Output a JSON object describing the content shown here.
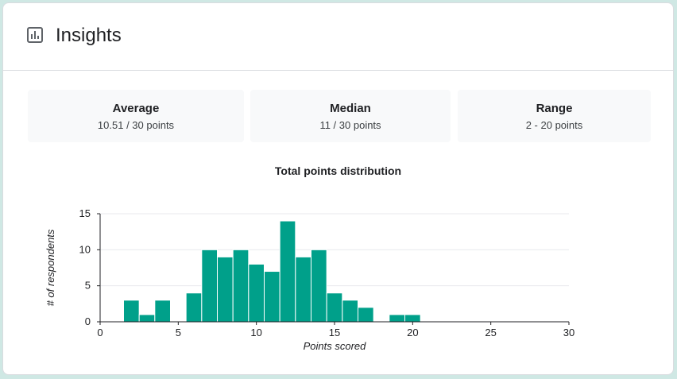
{
  "header": {
    "title": "Insights",
    "icon": "bar-chart-icon"
  },
  "stats": [
    {
      "label": "Average",
      "value": "10.51 / 30 points"
    },
    {
      "label": "Median",
      "value": "11 / 30 points"
    },
    {
      "label": "Range",
      "value": "2 - 20 points"
    }
  ],
  "colors": {
    "bar": "#00a08a",
    "grid": "#e8eaed",
    "axis": "#202124"
  },
  "chart_data": {
    "type": "bar",
    "title": "Total points distribution",
    "xlabel": "Points scored",
    "ylabel": "# of respondents",
    "xlim": [
      0,
      30
    ],
    "ylim": [
      0,
      15
    ],
    "xticks": [
      0,
      5,
      10,
      15,
      20,
      25,
      30
    ],
    "yticks": [
      0,
      5,
      10,
      15
    ],
    "grid": true,
    "x": [
      2,
      3,
      4,
      5,
      6,
      7,
      8,
      9,
      10,
      11,
      12,
      13,
      14,
      15,
      16,
      17,
      18,
      19,
      20
    ],
    "values": [
      3,
      1,
      3,
      0,
      4,
      10,
      9,
      10,
      8,
      7,
      14,
      9,
      10,
      4,
      3,
      2,
      0,
      1,
      1
    ]
  }
}
